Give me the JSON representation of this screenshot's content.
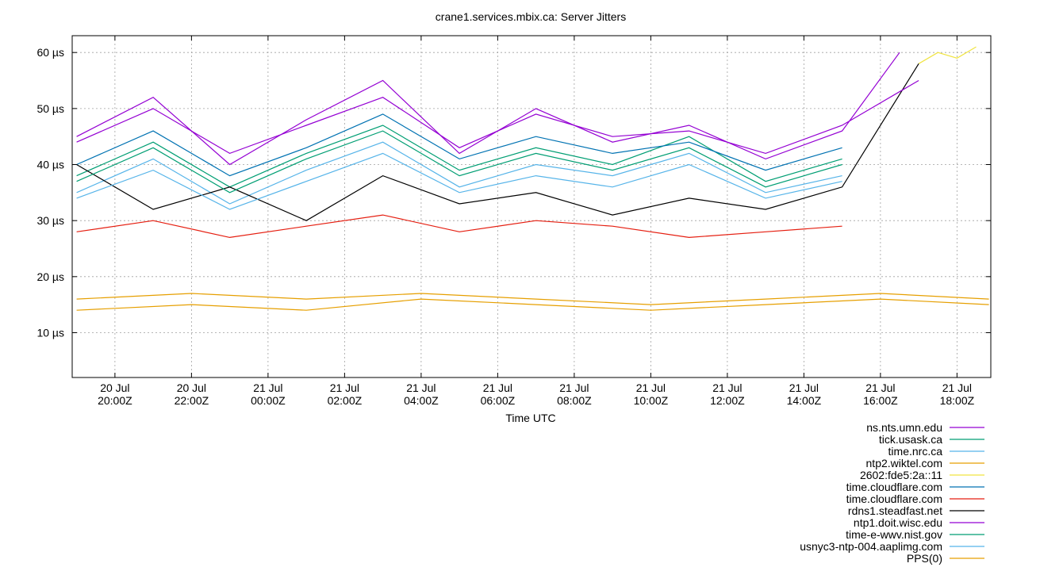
{
  "chart_data": {
    "type": "line",
    "title": "crane1.services.mbix.ca: Server Jitters",
    "xlabel": "Time UTC",
    "ylabel": "",
    "y_unit": "µs",
    "ylim": [
      2,
      63
    ],
    "xlim": [
      "2025-07-20T18:53Z",
      "2025-07-21T18:53Z"
    ],
    "grid": true,
    "legend_position": "bottom-right",
    "x_ticks": [
      {
        "t": "2025-07-20T20:00Z",
        "line1": "20 Jul",
        "line2": "20:00Z"
      },
      {
        "t": "2025-07-20T22:00Z",
        "line1": "20 Jul",
        "line2": "22:00Z"
      },
      {
        "t": "2025-07-21T00:00Z",
        "line1": "21 Jul",
        "line2": "00:00Z"
      },
      {
        "t": "2025-07-21T02:00Z",
        "line1": "21 Jul",
        "line2": "02:00Z"
      },
      {
        "t": "2025-07-21T04:00Z",
        "line1": "21 Jul",
        "line2": "04:00Z"
      },
      {
        "t": "2025-07-21T06:00Z",
        "line1": "21 Jul",
        "line2": "06:00Z"
      },
      {
        "t": "2025-07-21T08:00Z",
        "line1": "21 Jul",
        "line2": "08:00Z"
      },
      {
        "t": "2025-07-21T10:00Z",
        "line1": "21 Jul",
        "line2": "10:00Z"
      },
      {
        "t": "2025-07-21T12:00Z",
        "line1": "21 Jul",
        "line2": "12:00Z"
      },
      {
        "t": "2025-07-21T14:00Z",
        "line1": "21 Jul",
        "line2": "14:00Z"
      },
      {
        "t": "2025-07-21T16:00Z",
        "line1": "21 Jul",
        "line2": "16:00Z"
      },
      {
        "t": "2025-07-21T18:00Z",
        "line1": "21 Jul",
        "line2": "18:00Z"
      }
    ],
    "y_ticks": [
      {
        "v": 10,
        "label": "10 µs"
      },
      {
        "v": 20,
        "label": "20 µs"
      },
      {
        "v": 30,
        "label": "30 µs"
      },
      {
        "v": 40,
        "label": "40 µs"
      },
      {
        "v": 50,
        "label": "50 µs"
      },
      {
        "v": 60,
        "label": "60 µs"
      }
    ],
    "series": [
      {
        "name": "ns.nts.umn.edu",
        "color": "#9400d3",
        "points": [
          [
            "2025-07-20T19:00Z",
            45
          ],
          [
            "2025-07-20T21:00Z",
            52
          ],
          [
            "2025-07-20T23:00Z",
            40
          ],
          [
            "2025-07-21T01:00Z",
            48
          ],
          [
            "2025-07-21T03:00Z",
            55
          ],
          [
            "2025-07-21T05:00Z",
            42
          ],
          [
            "2025-07-21T07:00Z",
            50
          ],
          [
            "2025-07-21T09:00Z",
            44
          ],
          [
            "2025-07-21T11:00Z",
            47
          ],
          [
            "2025-07-21T13:00Z",
            41
          ],
          [
            "2025-07-21T15:00Z",
            46
          ],
          [
            "2025-07-21T16:30Z",
            60
          ]
        ]
      },
      {
        "name": "tick.usask.ca",
        "color": "#009e73",
        "points": [
          [
            "2025-07-20T19:00Z",
            38
          ],
          [
            "2025-07-20T21:00Z",
            44
          ],
          [
            "2025-07-20T23:00Z",
            36
          ],
          [
            "2025-07-21T01:00Z",
            42
          ],
          [
            "2025-07-21T03:00Z",
            47
          ],
          [
            "2025-07-21T05:00Z",
            39
          ],
          [
            "2025-07-21T07:00Z",
            43
          ],
          [
            "2025-07-21T09:00Z",
            40
          ],
          [
            "2025-07-21T11:00Z",
            45
          ],
          [
            "2025-07-21T13:00Z",
            37
          ],
          [
            "2025-07-21T15:00Z",
            41
          ]
        ]
      },
      {
        "name": "time.nrc.ca",
        "color": "#56b4e9",
        "points": [
          [
            "2025-07-20T19:00Z",
            35
          ],
          [
            "2025-07-20T21:00Z",
            41
          ],
          [
            "2025-07-20T23:00Z",
            33
          ],
          [
            "2025-07-21T01:00Z",
            39
          ],
          [
            "2025-07-21T03:00Z",
            44
          ],
          [
            "2025-07-21T05:00Z",
            36
          ],
          [
            "2025-07-21T07:00Z",
            40
          ],
          [
            "2025-07-21T09:00Z",
            38
          ],
          [
            "2025-07-21T11:00Z",
            42
          ],
          [
            "2025-07-21T13:00Z",
            35
          ],
          [
            "2025-07-21T15:00Z",
            38
          ]
        ]
      },
      {
        "name": "ntp2.wiktel.com",
        "color": "#e69f00",
        "points": [
          [
            "2025-07-20T19:00Z",
            14
          ],
          [
            "2025-07-20T22:00Z",
            15
          ],
          [
            "2025-07-21T01:00Z",
            14
          ],
          [
            "2025-07-21T04:00Z",
            16
          ],
          [
            "2025-07-21T07:00Z",
            15
          ],
          [
            "2025-07-21T10:00Z",
            14
          ],
          [
            "2025-07-21T13:00Z",
            15
          ],
          [
            "2025-07-21T16:00Z",
            16
          ],
          [
            "2025-07-21T18:50Z",
            15
          ]
        ]
      },
      {
        "name": "2602:fde5:2a::11",
        "color": "#f0e442",
        "points": [
          [
            "2025-07-21T17:00Z",
            58
          ],
          [
            "2025-07-21T17:30Z",
            60
          ],
          [
            "2025-07-21T18:00Z",
            59
          ],
          [
            "2025-07-21T18:30Z",
            61
          ]
        ]
      },
      {
        "name": "time.cloudflare.com",
        "color": "#0072b2",
        "points": [
          [
            "2025-07-20T19:00Z",
            40
          ],
          [
            "2025-07-20T21:00Z",
            46
          ],
          [
            "2025-07-20T23:00Z",
            38
          ],
          [
            "2025-07-21T01:00Z",
            43
          ],
          [
            "2025-07-21T03:00Z",
            49
          ],
          [
            "2025-07-21T05:00Z",
            41
          ],
          [
            "2025-07-21T07:00Z",
            45
          ],
          [
            "2025-07-21T09:00Z",
            42
          ],
          [
            "2025-07-21T11:00Z",
            44
          ],
          [
            "2025-07-21T13:00Z",
            39
          ],
          [
            "2025-07-21T15:00Z",
            43
          ]
        ]
      },
      {
        "name": "time.cloudflare.com",
        "color": "#e51e10",
        "points": [
          [
            "2025-07-20T19:00Z",
            28
          ],
          [
            "2025-07-20T21:00Z",
            30
          ],
          [
            "2025-07-20T23:00Z",
            27
          ],
          [
            "2025-07-21T01:00Z",
            29
          ],
          [
            "2025-07-21T03:00Z",
            31
          ],
          [
            "2025-07-21T05:00Z",
            28
          ],
          [
            "2025-07-21T07:00Z",
            30
          ],
          [
            "2025-07-21T09:00Z",
            29
          ],
          [
            "2025-07-21T11:00Z",
            27
          ],
          [
            "2025-07-21T13:00Z",
            28
          ],
          [
            "2025-07-21T15:00Z",
            29
          ]
        ]
      },
      {
        "name": "rdns1.steadfast.net",
        "color": "#000000",
        "points": [
          [
            "2025-07-20T19:00Z",
            40
          ],
          [
            "2025-07-20T21:00Z",
            32
          ],
          [
            "2025-07-20T23:00Z",
            36
          ],
          [
            "2025-07-21T01:00Z",
            30
          ],
          [
            "2025-07-21T03:00Z",
            38
          ],
          [
            "2025-07-21T05:00Z",
            33
          ],
          [
            "2025-07-21T07:00Z",
            35
          ],
          [
            "2025-07-21T09:00Z",
            31
          ],
          [
            "2025-07-21T11:00Z",
            34
          ],
          [
            "2025-07-21T13:00Z",
            32
          ],
          [
            "2025-07-21T15:00Z",
            36
          ],
          [
            "2025-07-21T17:00Z",
            58
          ]
        ]
      },
      {
        "name": "ntp1.doit.wisc.edu",
        "color": "#9400d3",
        "points": [
          [
            "2025-07-20T19:00Z",
            44
          ],
          [
            "2025-07-20T21:00Z",
            50
          ],
          [
            "2025-07-20T23:00Z",
            42
          ],
          [
            "2025-07-21T01:00Z",
            47
          ],
          [
            "2025-07-21T03:00Z",
            52
          ],
          [
            "2025-07-21T05:00Z",
            43
          ],
          [
            "2025-07-21T07:00Z",
            49
          ],
          [
            "2025-07-21T09:00Z",
            45
          ],
          [
            "2025-07-21T11:00Z",
            46
          ],
          [
            "2025-07-21T13:00Z",
            42
          ],
          [
            "2025-07-21T15:00Z",
            47
          ],
          [
            "2025-07-21T17:00Z",
            55
          ]
        ]
      },
      {
        "name": "time-e-wwv.nist.gov",
        "color": "#009e73",
        "points": [
          [
            "2025-07-20T19:00Z",
            37
          ],
          [
            "2025-07-20T21:00Z",
            43
          ],
          [
            "2025-07-20T23:00Z",
            35
          ],
          [
            "2025-07-21T01:00Z",
            41
          ],
          [
            "2025-07-21T03:00Z",
            46
          ],
          [
            "2025-07-21T05:00Z",
            38
          ],
          [
            "2025-07-21T07:00Z",
            42
          ],
          [
            "2025-07-21T09:00Z",
            39
          ],
          [
            "2025-07-21T11:00Z",
            43
          ],
          [
            "2025-07-21T13:00Z",
            36
          ],
          [
            "2025-07-21T15:00Z",
            40
          ]
        ]
      },
      {
        "name": "usnyc3-ntp-004.aaplimg.com",
        "color": "#56b4e9",
        "points": [
          [
            "2025-07-20T19:00Z",
            34
          ],
          [
            "2025-07-20T21:00Z",
            39
          ],
          [
            "2025-07-20T23:00Z",
            32
          ],
          [
            "2025-07-21T01:00Z",
            37
          ],
          [
            "2025-07-21T03:00Z",
            42
          ],
          [
            "2025-07-21T05:00Z",
            35
          ],
          [
            "2025-07-21T07:00Z",
            38
          ],
          [
            "2025-07-21T09:00Z",
            36
          ],
          [
            "2025-07-21T11:00Z",
            40
          ],
          [
            "2025-07-21T13:00Z",
            34
          ],
          [
            "2025-07-21T15:00Z",
            37
          ]
        ]
      },
      {
        "name": "PPS(0)",
        "color": "#e69f00",
        "points": [
          [
            "2025-07-20T19:00Z",
            16
          ],
          [
            "2025-07-20T22:00Z",
            17
          ],
          [
            "2025-07-21T01:00Z",
            16
          ],
          [
            "2025-07-21T04:00Z",
            17
          ],
          [
            "2025-07-21T07:00Z",
            16
          ],
          [
            "2025-07-21T10:00Z",
            15
          ],
          [
            "2025-07-21T13:00Z",
            16
          ],
          [
            "2025-07-21T16:00Z",
            17
          ],
          [
            "2025-07-21T18:50Z",
            16
          ]
        ]
      }
    ]
  }
}
